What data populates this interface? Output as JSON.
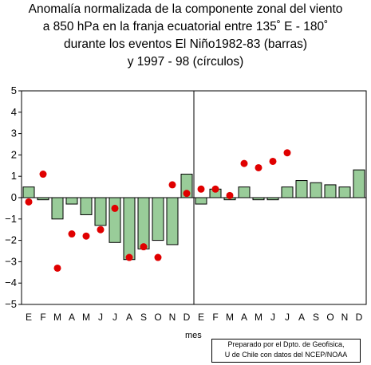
{
  "title_lines": [
    "Anomalía normalizada de la componente zonal del viento",
    "a 850 hPa en la franja ecuatorial entre 135˚ E - 180˚",
    "durante los eventos El Niño1982-83 (barras)",
    "y 1997 - 98 (círculos)"
  ],
  "xlabel": "mes",
  "credit": [
    "Preparado por el Dpto. de Geofisica,",
    "U de Chile con datos del NCEP/NOAA"
  ],
  "colors": {
    "bar": "#99cc99",
    "dot": "#e00000"
  },
  "chart_data": {
    "type": "bar",
    "categories": [
      "E",
      "F",
      "M",
      "A",
      "M",
      "J",
      "J",
      "A",
      "S",
      "O",
      "N",
      "D",
      "E",
      "F",
      "M",
      "A",
      "M",
      "J",
      "J",
      "A",
      "S",
      "O",
      "N",
      "D"
    ],
    "ylim": [
      -5,
      5
    ],
    "yticks": [
      5,
      4,
      3,
      2,
      1,
      0,
      -1,
      -2,
      -3,
      -4,
      -5
    ],
    "series": [
      {
        "values": [
          0.5,
          -0.1,
          -1.0,
          -0.3,
          -0.8,
          -1.3,
          -2.1,
          -2.9,
          -2.4,
          -2.0,
          -2.2,
          1.1,
          -0.3,
          0.4,
          -0.1,
          0.5,
          -0.1,
          -0.1,
          0.5,
          0.8,
          0.7,
          0.6,
          0.5,
          1.3
        ]
      },
      {
        "type": "scatter",
        "values": [
          -0.2,
          1.1,
          -3.3,
          -1.7,
          -1.8,
          -1.5,
          -0.5,
          -2.8,
          -2.3,
          -2.8,
          0.6,
          0.2,
          0.4,
          0.4,
          0.1,
          1.6,
          1.4,
          1.7,
          2.1,
          null,
          null,
          null,
          null,
          null
        ]
      }
    ],
    "grid": false,
    "vertical_divider_after_index": 11
  }
}
